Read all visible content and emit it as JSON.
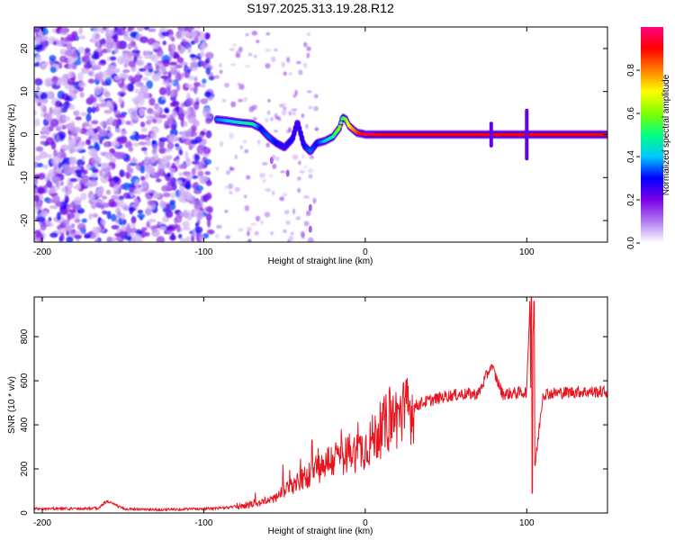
{
  "chart_data": [
    {
      "type": "heatmap",
      "title": "S197.2025.313.19.28.R12",
      "xlabel": "Height of straight line (km)",
      "ylabel": "Frequency (Hz)",
      "xlim": [
        -205,
        150
      ],
      "ylim": [
        -25,
        25
      ],
      "x_ticks": [
        -200,
        -100,
        0,
        100
      ],
      "y_ticks": [
        -20,
        -10,
        0,
        10,
        20
      ],
      "colorbar": {
        "label": "Normalized spectral amplitude",
        "range": [
          0.0,
          1.0
        ],
        "ticks": [
          0.0,
          0.2,
          0.4,
          0.6,
          0.8
        ],
        "tick_labels": [
          "0.0",
          "0.2",
          "0.4",
          "0.6",
          "0.8"
        ],
        "colors": [
          "#ffffff",
          "#b07cf0",
          "#7a00e6",
          "#0000ff",
          "#00c8ff",
          "#00ff80",
          "#7fff00",
          "#ffff00",
          "#ff8000",
          "#ff0000",
          "#ff0080"
        ]
      },
      "ridge": {
        "x": [
          -92,
          -85,
          -78,
          -70,
          -65,
          -60,
          -55,
          -50,
          -45,
          -42,
          -38,
          -34,
          -30,
          -25,
          -20,
          -16,
          -14,
          -12,
          -10,
          -7,
          -5,
          -2,
          0,
          10,
          50,
          100,
          150
        ],
        "y": [
          3.5,
          3.2,
          2.8,
          2.5,
          1.5,
          -0.5,
          -2.0,
          -3.0,
          -1.0,
          3.0,
          -2.5,
          -4.0,
          -2.0,
          -1.5,
          -0.5,
          1.5,
          4.0,
          3.5,
          2.0,
          1.0,
          0.4,
          0.2,
          0.0,
          0.0,
          0.0,
          0.0,
          0.0
        ],
        "amplitude": [
          0.35,
          0.4,
          0.45,
          0.5,
          0.3,
          0.35,
          0.3,
          0.25,
          0.3,
          0.25,
          0.3,
          0.35,
          0.3,
          0.4,
          0.5,
          0.6,
          0.5,
          0.6,
          0.7,
          0.8,
          0.85,
          0.9,
          0.95,
          0.9,
          0.9,
          0.9,
          0.9
        ]
      }
    },
    {
      "type": "line",
      "xlabel": "Height of straight line (km)",
      "ylabel": "SNR (10 * v/v)",
      "xlim": [
        -205,
        150
      ],
      "ylim": [
        0,
        980
      ],
      "x_ticks": [
        -200,
        -100,
        0,
        100
      ],
      "y_ticks": [
        0,
        200,
        400,
        600,
        800
      ],
      "series": [
        {
          "name": "SNR",
          "color": "#e8141e",
          "x": [
            -205,
            -190,
            -180,
            -165,
            -160,
            -150,
            -130,
            -110,
            -95,
            -85,
            -75,
            -70,
            -65,
            -60,
            -55,
            -50,
            -45,
            -40,
            -35,
            -32,
            -28,
            -25,
            -20,
            -15,
            -10,
            -5,
            0,
            5,
            10,
            15,
            20,
            25,
            30,
            35,
            40,
            45,
            50,
            60,
            70,
            78,
            85,
            95,
            100,
            102,
            103,
            104,
            105,
            110,
            120,
            130,
            140,
            150
          ],
          "values": [
            20,
            20,
            20,
            22,
            55,
            20,
            15,
            18,
            20,
            25,
            35,
            40,
            45,
            60,
            70,
            100,
            120,
            150,
            170,
            230,
            200,
            230,
            240,
            260,
            270,
            280,
            300,
            340,
            380,
            420,
            440,
            460,
            480,
            500,
            510,
            520,
            530,
            540,
            540,
            670,
            540,
            545,
            550,
            980,
            100,
            950,
            200,
            540,
            545,
            550,
            550,
            550
          ]
        }
      ],
      "peaks": [
        {
          "x": -160,
          "y": 55
        },
        {
          "x": -33,
          "y": 330
        },
        {
          "x": 78,
          "y": 670
        },
        {
          "x": 103,
          "y": 980
        },
        {
          "x": 104.5,
          "y": 960
        },
        {
          "x": 103.5,
          "y": 90
        }
      ]
    }
  ]
}
